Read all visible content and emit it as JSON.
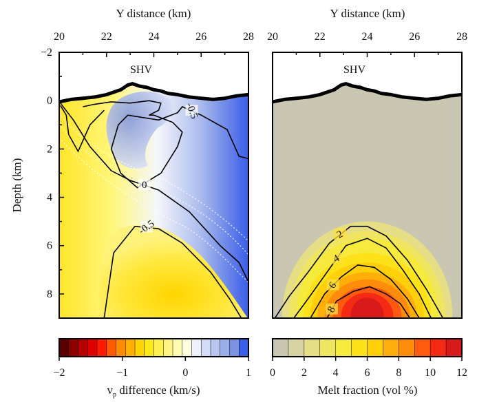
{
  "chart_data": [
    {
      "type": "heatmap",
      "title": "",
      "xlabel": "Y distance (km)",
      "ylabel": "Depth (km)",
      "xlim": [
        20,
        28
      ],
      "ylim": [
        -2,
        9
      ],
      "y_axis_inverted": true,
      "xticks": [
        "20",
        "22",
        "24",
        "26",
        "28"
      ],
      "yticks": [
        "−2",
        "0",
        "2",
        "4",
        "6",
        "8"
      ],
      "annotation": "SHV",
      "topography": {
        "x": [
          20,
          20.5,
          21,
          21.5,
          22,
          22.3,
          22.6,
          22.9,
          23.1,
          23.4,
          23.7,
          24,
          24.3,
          24.6,
          25,
          25.5,
          26,
          26.5,
          27,
          27.5,
          28
        ],
        "y": [
          0.05,
          -0.05,
          -0.1,
          -0.15,
          -0.25,
          -0.35,
          -0.45,
          -0.65,
          -0.7,
          -0.6,
          -0.55,
          -0.45,
          -0.4,
          -0.3,
          -0.25,
          -0.15,
          -0.1,
          -0.05,
          -0.1,
          -0.2,
          -0.25
        ]
      },
      "contours": [
        {
          "level": "-0.5",
          "x": [
            20.05,
            20.3,
            20.4,
            20.8,
            21.3,
            21.9
          ],
          "y": [
            0.2,
            0.6,
            1.4,
            2.1,
            1.0,
            0.4
          ]
        },
        {
          "level": "-0.5",
          "x": [
            21.0,
            21.5,
            22.2,
            23.0,
            23.8,
            24.3,
            24.2,
            23.8,
            24.0,
            24.8,
            25.2,
            25.0,
            24.3,
            23.3,
            22.6,
            22.2,
            22.5,
            22.9,
            24.2,
            25.0,
            25.2,
            26.0,
            27.1,
            27.6,
            28.0
          ],
          "y": [
            0.25,
            0.15,
            0.05,
            0.1,
            0.0,
            0.1,
            0.4,
            0.6,
            0.6,
            0.9,
            1.3,
            1.9,
            3.0,
            3.6,
            3.0,
            2.0,
            1.0,
            0.6,
            0.8,
            0.5,
            0.25,
            0.6,
            1.2,
            2.3,
            2.4
          ]
        },
        {
          "level": "0",
          "x": [
            20.05,
            20.6,
            21.3,
            22.2,
            23.0,
            24.2,
            25.5,
            26.8,
            27.6,
            28.0
          ],
          "y": [
            0.1,
            0.8,
            1.9,
            2.9,
            3.3,
            3.7,
            4.6,
            6.0,
            6.7,
            7.5
          ]
        },
        {
          "level": "-0.5",
          "x": [
            21.9,
            22.3,
            23.2,
            24.2,
            25.2,
            26.4,
            27.2,
            27.7
          ],
          "y": [
            9.0,
            6.3,
            5.2,
            5.3,
            5.9,
            7.1,
            8.2,
            9.0
          ]
        }
      ],
      "colorbar": {
        "label": "v_p difference (km/s)",
        "tick_labels": [
          "−2",
          "−1",
          "0",
          "1"
        ],
        "ticks": [
          -2,
          -1,
          0,
          1
        ],
        "levels": [
          -2,
          -1.85,
          -1.7,
          -1.55,
          -1.4,
          -1.25,
          -1.1,
          -0.95,
          -0.8,
          -0.65,
          -0.5,
          -0.35,
          -0.2,
          -0.05,
          0.1,
          0.25,
          0.4,
          0.55,
          0.7,
          0.85,
          1
        ],
        "colors": [
          "#5a0000",
          "#8b0000",
          "#b80000",
          "#e00000",
          "#ff1a00",
          "#ff5a00",
          "#ff8c00",
          "#ffb300",
          "#ffd400",
          "#ffe81a",
          "#fff04d",
          "#fff580",
          "#fffab3",
          "#fffde0",
          "#eef1fb",
          "#d4dcf5",
          "#b8c5ef",
          "#9aaee9",
          "#7a94e3",
          "#3c5fe8"
        ],
        "range": [
          -2,
          1
        ]
      }
    },
    {
      "type": "heatmap",
      "title": "",
      "xlabel": "Y distance (km)",
      "ylabel": "",
      "xlim": [
        20,
        28
      ],
      "ylim": [
        -2,
        9
      ],
      "y_axis_inverted": true,
      "xticks": [
        "20",
        "22",
        "24",
        "26",
        "28"
      ],
      "annotation": "SHV",
      "topography": {
        "x": [
          20,
          20.5,
          21,
          21.5,
          22,
          22.3,
          22.6,
          22.9,
          23.1,
          23.4,
          23.7,
          24,
          24.3,
          24.6,
          25,
          25.5,
          26,
          26.5,
          27,
          27.5,
          28
        ],
        "y": [
          0.05,
          -0.05,
          -0.1,
          -0.15,
          -0.25,
          -0.35,
          -0.45,
          -0.65,
          -0.7,
          -0.6,
          -0.55,
          -0.45,
          -0.4,
          -0.3,
          -0.25,
          -0.15,
          -0.1,
          -0.05,
          -0.1,
          -0.2,
          -0.25
        ]
      },
      "melt_anomaly": {
        "center_x": 24.0,
        "center_y": 8.9,
        "peak_vol_percent": 12
      },
      "contours": [
        {
          "level": "2",
          "x": [
            20.1,
            20.7,
            21.5,
            22.4,
            23.3,
            24.0,
            24.8,
            25.7,
            26.5,
            27.2
          ],
          "y": [
            9.0,
            8.1,
            7.1,
            5.9,
            5.2,
            5.2,
            5.6,
            6.6,
            7.8,
            9.0
          ]
        },
        {
          "level": "4",
          "x": [
            20.9,
            21.5,
            22.3,
            23.1,
            24.0,
            24.8,
            25.5,
            26.2,
            26.7
          ],
          "y": [
            9.0,
            8.2,
            7.1,
            6.0,
            5.7,
            6.1,
            7.0,
            8.0,
            9.0
          ]
        },
        {
          "level": "6",
          "x": [
            21.6,
            22.2,
            22.9,
            23.6,
            24.3,
            25.0,
            25.7,
            26.2
          ],
          "y": [
            9.0,
            8.0,
            7.3,
            6.8,
            6.9,
            7.4,
            8.2,
            9.0
          ]
        },
        {
          "level": "8",
          "x": [
            22.3,
            22.7,
            23.4,
            24.1,
            24.8,
            25.4,
            25.8
          ],
          "y": [
            9.0,
            8.3,
            7.9,
            7.7,
            8.0,
            8.4,
            9.0
          ]
        }
      ],
      "colorbar": {
        "label": "Melt fraction (vol %)",
        "tick_labels": [
          "0",
          "2",
          "4",
          "6",
          "8",
          "10",
          "12"
        ],
        "ticks": [
          0,
          2,
          4,
          6,
          8,
          10,
          12
        ],
        "levels": [
          0,
          1,
          2,
          3,
          4,
          5,
          6,
          7,
          8,
          9,
          10,
          11,
          12
        ],
        "colors": [
          "#c9c6b2",
          "#d9d3a2",
          "#e6de86",
          "#efe560",
          "#f6ea3c",
          "#fde21a",
          "#ffcf0a",
          "#ffae0a",
          "#ff8c0a",
          "#ff5a0f",
          "#f52a14",
          "#d81a1a"
        ],
        "range": [
          0,
          12
        ]
      }
    }
  ]
}
